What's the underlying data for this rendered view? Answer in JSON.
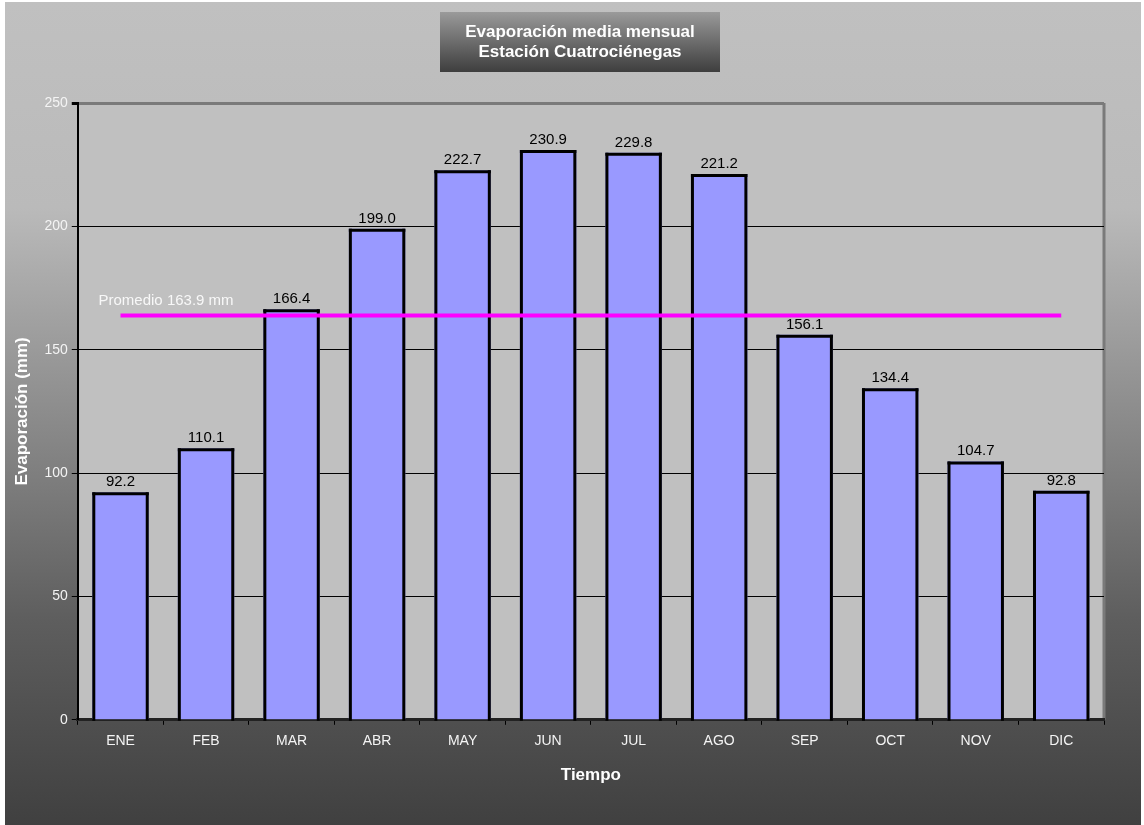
{
  "chart_data": {
    "type": "bar",
    "title": "Evaporación media mensual",
    "subtitle": "Estación Cuatrociénegas",
    "xlabel": "Tiempo",
    "ylabel": "Evaporación (mm)",
    "categories": [
      "ENE",
      "FEB",
      "MAR",
      "ABR",
      "MAY",
      "JUN",
      "JUL",
      "AGO",
      "SEP",
      "OCT",
      "NOV",
      "DIC"
    ],
    "values": [
      92.2,
      110.1,
      166.4,
      199.0,
      222.7,
      230.9,
      229.8,
      221.2,
      156.1,
      134.4,
      104.7,
      92.8
    ],
    "value_labels": [
      "92.2",
      "110.1",
      "166.4",
      "199.0",
      "222.7",
      "230.9",
      "229.8",
      "221.2",
      "156.1",
      "134.4",
      "104.7",
      "92.8"
    ],
    "color": "#9999ff",
    "ylim": [
      0,
      250
    ],
    "yticks": [
      0,
      50,
      100,
      150,
      200,
      250
    ],
    "grid": "y",
    "ref_lines": [
      {
        "axis": "y",
        "value": 163.9,
        "label": "Promedio 163.9 mm",
        "color": "#ff00ff"
      }
    ]
  }
}
